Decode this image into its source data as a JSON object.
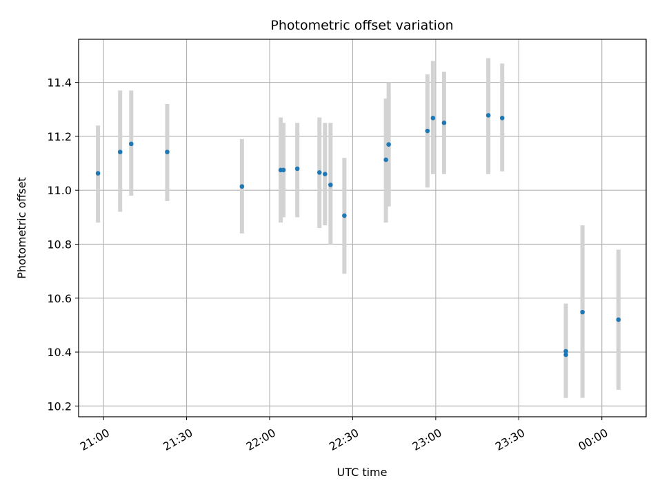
{
  "chart_data": {
    "type": "scatter",
    "title": "Photometric offset variation",
    "xlabel": "UTC time",
    "ylabel": "Photometric offset",
    "x_is_time": true,
    "xlim": [
      "20:51",
      "00:16"
    ],
    "ylim": [
      10.16,
      11.56
    ],
    "x_ticks": [
      "21:00",
      "21:30",
      "22:00",
      "22:30",
      "23:00",
      "23:30",
      "00:00"
    ],
    "y_ticks": [
      "10.2",
      "10.4",
      "10.6",
      "10.8",
      "11.0",
      "11.2",
      "11.4"
    ],
    "grid": true,
    "colors": {
      "points": "#1f77b4",
      "errorbars": "#d3d3d3",
      "grid": "#b0b0b0"
    },
    "points": [
      {
        "t": "20:58",
        "y": 11.063,
        "lo": 10.88,
        "hi": 11.24
      },
      {
        "t": "21:06",
        "y": 11.142,
        "lo": 10.92,
        "hi": 11.37
      },
      {
        "t": "21:10",
        "y": 11.172,
        "lo": 10.98,
        "hi": 11.37
      },
      {
        "t": "21:23",
        "y": 11.142,
        "lo": 10.96,
        "hi": 11.32
      },
      {
        "t": "21:50",
        "y": 11.014,
        "lo": 10.84,
        "hi": 11.19
      },
      {
        "t": "22:04",
        "y": 11.075,
        "lo": 10.88,
        "hi": 11.27
      },
      {
        "t": "22:05",
        "y": 11.075,
        "lo": 10.9,
        "hi": 11.25
      },
      {
        "t": "22:10",
        "y": 11.08,
        "lo": 10.9,
        "hi": 11.25
      },
      {
        "t": "22:18",
        "y": 11.066,
        "lo": 10.86,
        "hi": 11.27
      },
      {
        "t": "22:20",
        "y": 11.06,
        "lo": 10.87,
        "hi": 11.25
      },
      {
        "t": "22:22",
        "y": 11.02,
        "lo": 10.8,
        "hi": 11.25
      },
      {
        "t": "22:27",
        "y": 10.906,
        "lo": 10.69,
        "hi": 11.12
      },
      {
        "t": "22:42",
        "y": 11.113,
        "lo": 10.88,
        "hi": 11.34
      },
      {
        "t": "22:43",
        "y": 11.17,
        "lo": 10.94,
        "hi": 11.4
      },
      {
        "t": "22:57",
        "y": 11.22,
        "lo": 11.01,
        "hi": 11.43
      },
      {
        "t": "22:59",
        "y": 11.268,
        "lo": 11.06,
        "hi": 11.48
      },
      {
        "t": "23:03",
        "y": 11.25,
        "lo": 11.06,
        "hi": 11.44
      },
      {
        "t": "23:19",
        "y": 11.278,
        "lo": 11.06,
        "hi": 11.49
      },
      {
        "t": "23:24",
        "y": 11.268,
        "lo": 11.07,
        "hi": 11.47
      },
      {
        "t": "23:47",
        "y": 10.403,
        "lo": 10.23,
        "hi": 10.58
      },
      {
        "t": "23:47",
        "y": 10.39,
        "lo": 10.23,
        "hi": 10.55
      },
      {
        "t": "23:53",
        "y": 10.548,
        "lo": 10.23,
        "hi": 10.87
      },
      {
        "t": "00:06",
        "y": 10.52,
        "lo": 10.26,
        "hi": 10.78
      }
    ]
  }
}
